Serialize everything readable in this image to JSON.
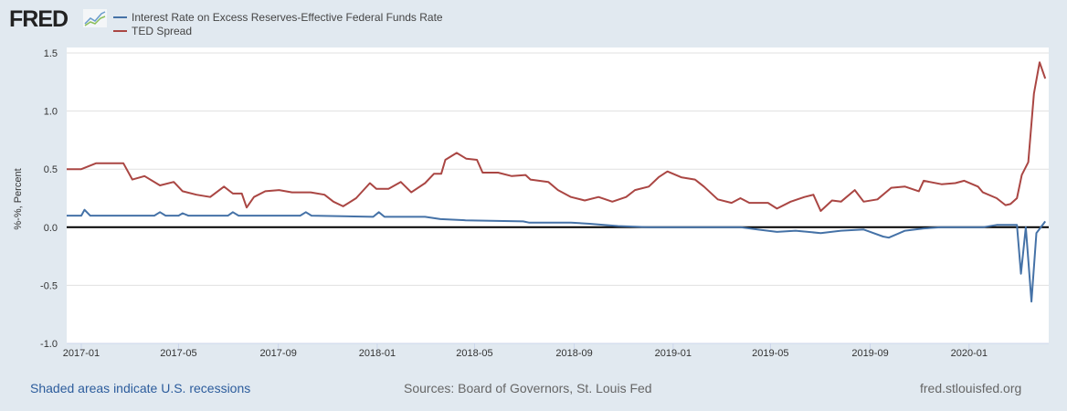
{
  "header": {
    "logo": "FRED",
    "legend": [
      {
        "label": "Interest Rate on Excess Reserves-Effective Federal Funds Rate",
        "color": "#4572a7"
      },
      {
        "label": "TED Spread",
        "color": "#aa4643"
      }
    ]
  },
  "footer": {
    "recessions": "Shaded areas indicate U.S. recessions",
    "sources": "Sources: Board of Governors, St. Louis Fed",
    "site": "fred.stlouisfed.org"
  },
  "chart_data": {
    "type": "line",
    "ylabel": "%-%, Percent",
    "ylim": [
      -1.0,
      1.5
    ],
    "xlim": [
      "2016-12-14",
      "2020-04-06"
    ],
    "yticks": [
      "1.5",
      "1.0",
      "0.5",
      "0.0",
      "-0.5",
      "-1.0"
    ],
    "xticks": [
      "2017-01",
      "2017-05",
      "2017-09",
      "2018-01",
      "2018-05",
      "2018-09",
      "2019-01",
      "2019-05",
      "2019-09",
      "2020-01"
    ],
    "grid": true,
    "legend_placement": "top-left",
    "series": [
      {
        "name": "Interest Rate on Excess Reserves-Effective Federal Funds Rate",
        "color": "#4572a7",
        "points": [
          [
            "2016-12-14",
            0.1
          ],
          [
            "2017-01-01",
            0.1
          ],
          [
            "2017-01-05",
            0.15
          ],
          [
            "2017-01-12",
            0.1
          ],
          [
            "2017-04-01",
            0.1
          ],
          [
            "2017-04-08",
            0.13
          ],
          [
            "2017-04-15",
            0.1
          ],
          [
            "2017-05-01",
            0.1
          ],
          [
            "2017-05-06",
            0.12
          ],
          [
            "2017-05-13",
            0.1
          ],
          [
            "2017-07-01",
            0.1
          ],
          [
            "2017-07-07",
            0.13
          ],
          [
            "2017-07-14",
            0.1
          ],
          [
            "2017-09-28",
            0.1
          ],
          [
            "2017-10-05",
            0.13
          ],
          [
            "2017-10-12",
            0.1
          ],
          [
            "2017-12-27",
            0.09
          ],
          [
            "2018-01-03",
            0.13
          ],
          [
            "2018-01-10",
            0.09
          ],
          [
            "2018-03-01",
            0.09
          ],
          [
            "2018-03-20",
            0.07
          ],
          [
            "2018-04-20",
            0.06
          ],
          [
            "2018-06-30",
            0.05
          ],
          [
            "2018-07-07",
            0.04
          ],
          [
            "2018-08-28",
            0.04
          ],
          [
            "2018-09-20",
            0.03
          ],
          [
            "2018-10-25",
            0.01
          ],
          [
            "2018-12-01",
            0.0
          ],
          [
            "2019-03-25",
            0.0
          ],
          [
            "2019-04-15",
            -0.02
          ],
          [
            "2019-05-09",
            -0.04
          ],
          [
            "2019-06-01",
            -0.03
          ],
          [
            "2019-07-02",
            -0.05
          ],
          [
            "2019-07-27",
            -0.03
          ],
          [
            "2019-08-24",
            -0.02
          ],
          [
            "2019-09-17",
            -0.08
          ],
          [
            "2019-09-24",
            -0.09
          ],
          [
            "2019-10-14",
            -0.03
          ],
          [
            "2019-11-06",
            -0.01
          ],
          [
            "2019-11-28",
            0.0
          ],
          [
            "2020-01-18",
            0.0
          ],
          [
            "2020-02-04",
            0.02
          ],
          [
            "2020-02-29",
            0.02
          ],
          [
            "2020-03-05",
            -0.4
          ],
          [
            "2020-03-11",
            0.0
          ],
          [
            "2020-03-18",
            -0.64
          ],
          [
            "2020-03-24",
            -0.05
          ],
          [
            "2020-04-04",
            0.05
          ]
        ]
      },
      {
        "name": "TED Spread",
        "color": "#aa4643",
        "points": [
          [
            "2016-12-14",
            0.5
          ],
          [
            "2017-01-01",
            0.5
          ],
          [
            "2017-01-19",
            0.55
          ],
          [
            "2017-02-22",
            0.55
          ],
          [
            "2017-03-05",
            0.41
          ],
          [
            "2017-03-20",
            0.44
          ],
          [
            "2017-04-08",
            0.36
          ],
          [
            "2017-04-25",
            0.39
          ],
          [
            "2017-05-06",
            0.31
          ],
          [
            "2017-05-23",
            0.28
          ],
          [
            "2017-06-09",
            0.26
          ],
          [
            "2017-06-26",
            0.35
          ],
          [
            "2017-07-07",
            0.29
          ],
          [
            "2017-07-18",
            0.29
          ],
          [
            "2017-07-24",
            0.17
          ],
          [
            "2017-08-02",
            0.26
          ],
          [
            "2017-08-16",
            0.31
          ],
          [
            "2017-09-02",
            0.32
          ],
          [
            "2017-09-18",
            0.3
          ],
          [
            "2017-10-11",
            0.3
          ],
          [
            "2017-10-28",
            0.28
          ],
          [
            "2017-11-08",
            0.22
          ],
          [
            "2017-11-20",
            0.18
          ],
          [
            "2017-12-06",
            0.25
          ],
          [
            "2017-12-23",
            0.38
          ],
          [
            "2017-12-31",
            0.33
          ],
          [
            "2018-01-15",
            0.33
          ],
          [
            "2018-01-30",
            0.39
          ],
          [
            "2018-02-12",
            0.3
          ],
          [
            "2018-03-01",
            0.38
          ],
          [
            "2018-03-12",
            0.46
          ],
          [
            "2018-03-21",
            0.46
          ],
          [
            "2018-03-26",
            0.58
          ],
          [
            "2018-04-09",
            0.64
          ],
          [
            "2018-04-21",
            0.59
          ],
          [
            "2018-05-04",
            0.58
          ],
          [
            "2018-05-11",
            0.47
          ],
          [
            "2018-05-30",
            0.47
          ],
          [
            "2018-06-16",
            0.44
          ],
          [
            "2018-07-03",
            0.45
          ],
          [
            "2018-07-09",
            0.41
          ],
          [
            "2018-07-31",
            0.39
          ],
          [
            "2018-08-12",
            0.32
          ],
          [
            "2018-08-28",
            0.26
          ],
          [
            "2018-09-14",
            0.23
          ],
          [
            "2018-10-01",
            0.26
          ],
          [
            "2018-10-18",
            0.22
          ],
          [
            "2018-11-04",
            0.26
          ],
          [
            "2018-11-15",
            0.32
          ],
          [
            "2018-12-02",
            0.35
          ],
          [
            "2018-12-14",
            0.43
          ],
          [
            "2018-12-25",
            0.48
          ],
          [
            "2019-01-11",
            0.43
          ],
          [
            "2019-01-28",
            0.41
          ],
          [
            "2019-02-08",
            0.35
          ],
          [
            "2019-02-25",
            0.24
          ],
          [
            "2019-03-14",
            0.21
          ],
          [
            "2019-03-25",
            0.25
          ],
          [
            "2019-04-05",
            0.21
          ],
          [
            "2019-04-28",
            0.21
          ],
          [
            "2019-05-09",
            0.16
          ],
          [
            "2019-05-26",
            0.22
          ],
          [
            "2019-06-12",
            0.26
          ],
          [
            "2019-06-23",
            0.28
          ],
          [
            "2019-07-02",
            0.14
          ],
          [
            "2019-07-16",
            0.23
          ],
          [
            "2019-07-27",
            0.22
          ],
          [
            "2019-08-13",
            0.32
          ],
          [
            "2019-08-24",
            0.22
          ],
          [
            "2019-09-10",
            0.24
          ],
          [
            "2019-09-27",
            0.34
          ],
          [
            "2019-10-14",
            0.35
          ],
          [
            "2019-10-31",
            0.31
          ],
          [
            "2019-11-06",
            0.4
          ],
          [
            "2019-11-28",
            0.37
          ],
          [
            "2019-12-15",
            0.38
          ],
          [
            "2019-12-26",
            0.4
          ],
          [
            "2020-01-12",
            0.35
          ],
          [
            "2020-01-18",
            0.3
          ],
          [
            "2020-02-04",
            0.25
          ],
          [
            "2020-02-15",
            0.19
          ],
          [
            "2020-02-21",
            0.2
          ],
          [
            "2020-02-29",
            0.25
          ],
          [
            "2020-03-06",
            0.45
          ],
          [
            "2020-03-14",
            0.56
          ],
          [
            "2020-03-21",
            1.15
          ],
          [
            "2020-03-28",
            1.42
          ],
          [
            "2020-04-04",
            1.28
          ]
        ]
      }
    ]
  }
}
